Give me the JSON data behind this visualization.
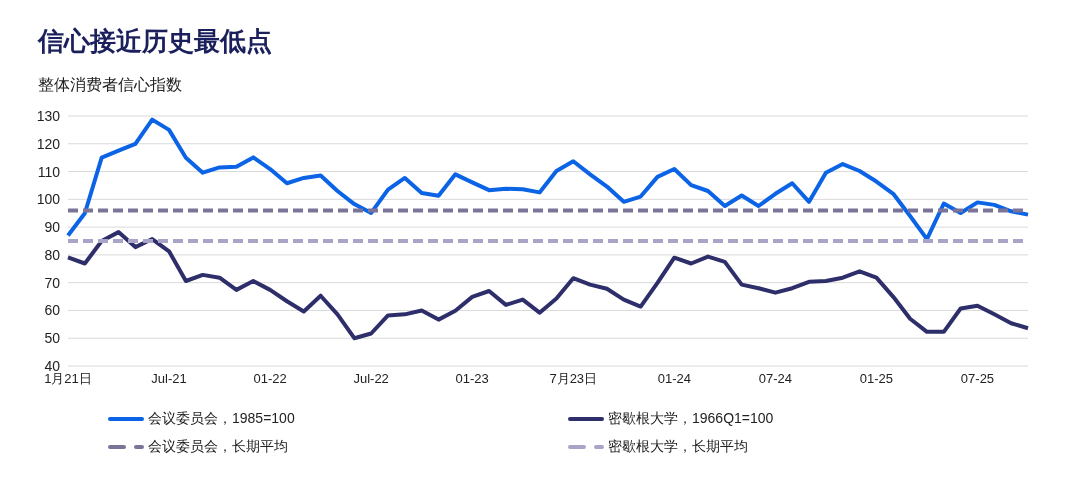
{
  "chart_data": {
    "type": "line",
    "title": "信心接近历史最低点",
    "subtitle": "整体消费者信心指数",
    "categories": [
      "1月21日",
      null,
      null,
      null,
      null,
      null,
      "Jul-21",
      null,
      null,
      null,
      null,
      null,
      "01-22",
      null,
      null,
      null,
      null,
      null,
      "Jul-22",
      null,
      null,
      null,
      null,
      null,
      "01-23",
      null,
      null,
      null,
      null,
      null,
      "7月23日",
      null,
      null,
      null,
      null,
      null,
      "01-24",
      null,
      null,
      null,
      null,
      null,
      "07-24",
      null,
      null,
      null,
      null,
      null,
      "01-25",
      null,
      null,
      null,
      null,
      null,
      "07-25",
      null,
      null,
      null
    ],
    "series": [
      {
        "name": "会议委员会，1985=100",
        "color": "#0b63e5",
        "line_style": "solid",
        "values": [
          87,
          95,
          115,
          117.5,
          120,
          128.7,
          125,
          115,
          109.6,
          111.5,
          111.7,
          115.1,
          110.9,
          105.8,
          107.7,
          108.6,
          103,
          98.3,
          95.1,
          103.5,
          107.7,
          102.3,
          101.3,
          109,
          106.1,
          103.3,
          103.8,
          103.6,
          102.5,
          110.2,
          113.7,
          109,
          104.6,
          99.1,
          101,
          108.1,
          110.9,
          105.1,
          103,
          97.6,
          101.4,
          97.6,
          102,
          105.8,
          99.1,
          109.6,
          112.7,
          110.2,
          106.4,
          102,
          94,
          85.7,
          98.5,
          95.1,
          98.9,
          98,
          95.7,
          94.5
        ]
      },
      {
        "name": "密歇根大学，1966Q1=100",
        "color": "#2e2e6b",
        "line_style": "solid",
        "values": [
          79.1,
          76.9,
          85,
          88.2,
          82.8,
          85.7,
          81.3,
          70.6,
          72.8,
          71.8,
          67.4,
          70.6,
          67.4,
          63.3,
          59.6,
          65.3,
          58.6,
          50,
          51.7,
          58.2,
          58.6,
          60,
          56.7,
          59.9,
          64.9,
          67,
          62,
          63.9,
          59.2,
          64.3,
          71.6,
          69.3,
          67.8,
          63.9,
          61.4,
          69.9,
          79,
          76.9,
          79.4,
          77.5,
          69.3,
          68,
          66.4,
          68,
          70.3,
          70.6,
          71.8,
          74.1,
          71.8,
          64.9,
          57,
          52.3,
          52.3,
          60.7,
          61.7,
          58.6,
          55.4,
          53.6
        ]
      },
      {
        "name": "会议委员会，长期平均",
        "color": "#7a7499",
        "line_style": "dashed",
        "values": [
          96,
          96,
          96,
          96,
          96,
          96,
          96,
          96,
          96,
          96,
          96,
          96,
          96,
          96,
          96,
          96,
          96,
          96,
          96,
          96,
          96,
          96,
          96,
          96,
          96,
          96,
          96,
          96,
          96,
          96,
          96,
          96,
          96,
          96,
          96,
          96,
          96,
          96,
          96,
          96,
          96,
          96,
          96,
          96,
          96,
          96,
          96,
          96,
          96,
          96,
          96,
          96,
          96,
          96,
          96,
          96,
          96,
          96
        ]
      },
      {
        "name": "密歇根大学，长期平均",
        "color": "#a9a5c8",
        "line_style": "dashed",
        "values": [
          85,
          85,
          85,
          85,
          85,
          85,
          85,
          85,
          85,
          85,
          85,
          85,
          85,
          85,
          85,
          85,
          85,
          85,
          85,
          85,
          85,
          85,
          85,
          85,
          85,
          85,
          85,
          85,
          85,
          85,
          85,
          85,
          85,
          85,
          85,
          85,
          85,
          85,
          85,
          85,
          85,
          85,
          85,
          85,
          85,
          85,
          85,
          85,
          85,
          85,
          85,
          85,
          85,
          85,
          85,
          85,
          85,
          85
        ]
      }
    ],
    "ylim": [
      40,
      130
    ],
    "yticks": [
      40,
      50,
      60,
      70,
      80,
      90,
      100,
      110,
      120,
      130
    ],
    "grid": "y",
    "legend": "bottom",
    "marker": "none"
  }
}
